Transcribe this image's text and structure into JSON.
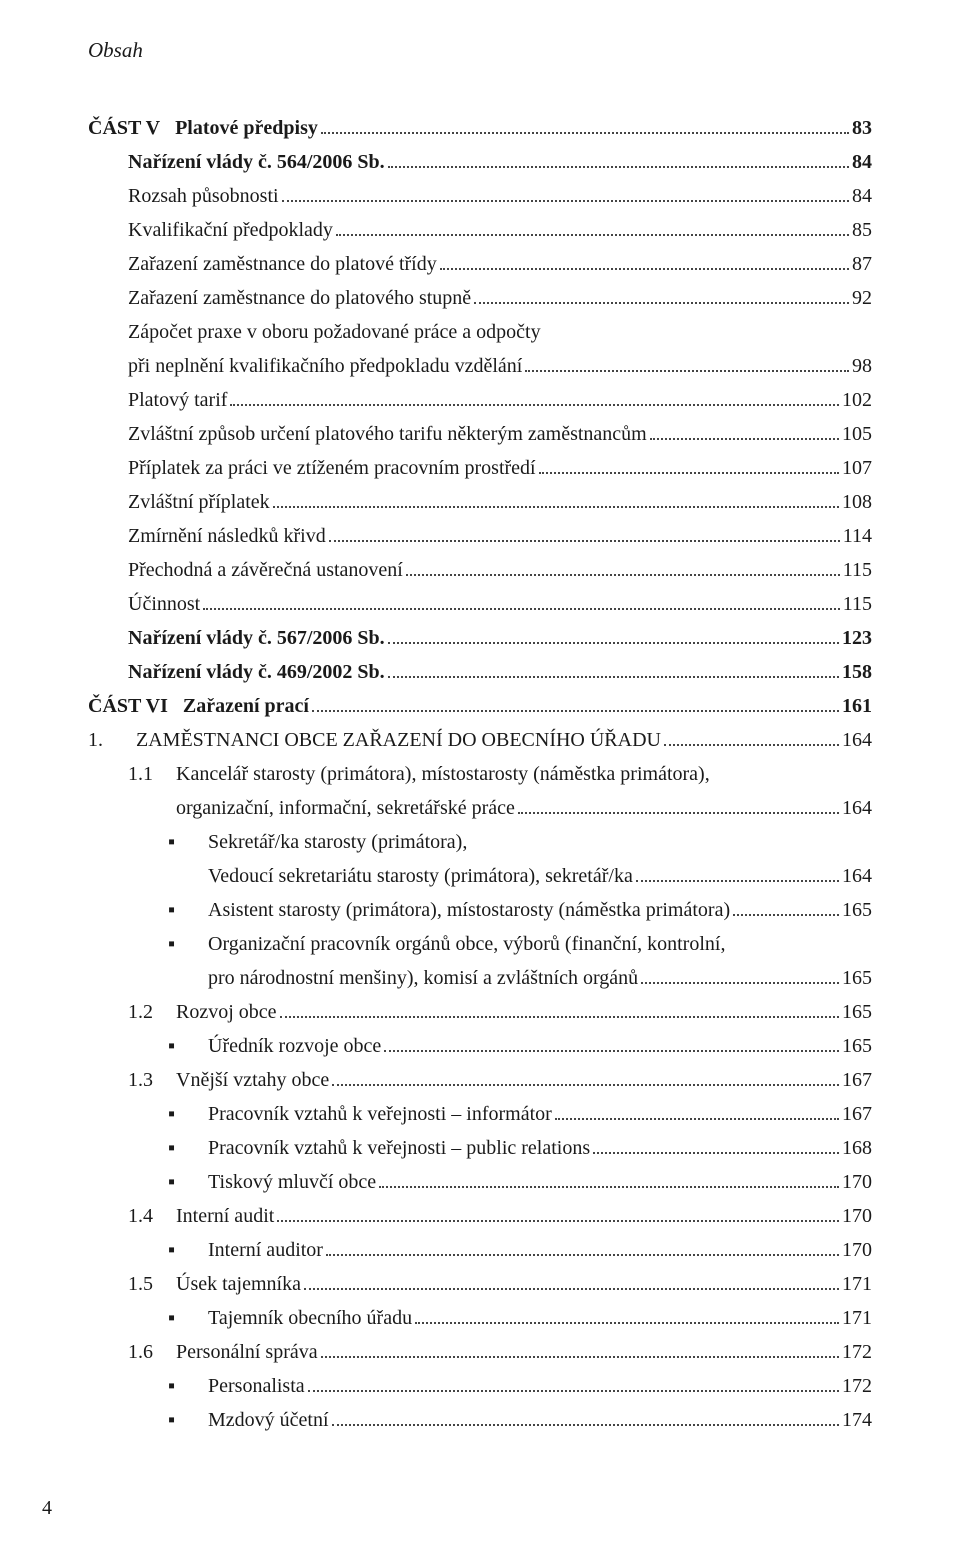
{
  "colors": {
    "text": "#1a1a1a",
    "background": "#ffffff",
    "leader": "#444444"
  },
  "typography": {
    "family": "Georgia, Times New Roman, serif",
    "body_size_pt": 15,
    "running_head_style": "italic"
  },
  "running_head": "Obsah",
  "page_number": "4",
  "toc": {
    "part5": {
      "prefix": "ČÁST V",
      "title": "Platové předpisy",
      "page": "83",
      "items": [
        {
          "label": "Nařízení vlády č. 564/2006 Sb.",
          "page": "84",
          "bold": true
        },
        {
          "label": "Rozsah působnosti",
          "page": "84"
        },
        {
          "label": "Kvalifikační předpoklady",
          "page": "85"
        },
        {
          "label": "Zařazení zaměstnance do platové třídy",
          "page": "87"
        },
        {
          "label": "Zařazení zaměstnance do platového stupně",
          "page": "92"
        },
        {
          "label_lines": [
            "Zápočet praxe v oboru požadované práce a odpočty",
            "při neplnění kvalifikačního předpokladu vzdělání"
          ],
          "page": "98"
        },
        {
          "label": "Platový tarif",
          "page": "102"
        },
        {
          "label": "Zvláštní způsob určení platového tarifu některým zaměstnancům",
          "page": "105"
        },
        {
          "label": "Příplatek za práci ve ztíženém pracovním prostředí",
          "page": "107"
        },
        {
          "label": "Zvláštní příplatek",
          "page": "108"
        },
        {
          "label": "Zmírnění následků křivd",
          "page": "114"
        },
        {
          "label": "Přechodná a závěrečná ustanovení",
          "page": "115"
        },
        {
          "label": "Účinnost",
          "page": "115"
        },
        {
          "label": "Nařízení vlády č. 567/2006 Sb.",
          "page": "123",
          "bold": true
        },
        {
          "label": "Nařízení vlády č. 469/2002 Sb.",
          "page": "158",
          "bold": true
        }
      ]
    },
    "part6": {
      "prefix": "ČÁST VI",
      "title": "Zařazení prací",
      "page": "161",
      "sections": [
        {
          "num": "1.",
          "title": "ZAMĚSTNANCI OBCE ZAŘAZENÍ  DO OBECNÍHO ÚŘADU",
          "page": "164",
          "subs": [
            {
              "num": "1.1",
              "title_lines": [
                "Kancelář starosty (primátora), místostarosty  (náměstka primátora),",
                "organizační, informační, sekretářské práce"
              ],
              "page": "164",
              "bullets": [
                {
                  "lines": [
                    "Sekretář/ka starosty (primátora),",
                    "Vedoucí sekretariátu starosty (primátora), sekretář/ka"
                  ],
                  "page": "164"
                },
                {
                  "lines": [
                    "Asistent starosty (primátora), místostarosty (náměstka primátora)"
                  ],
                  "page": "165"
                },
                {
                  "lines": [
                    "Organizační pracovník orgánů obce, výborů (finanční, kontrolní,",
                    "pro národnostní menšiny), komisí a zvláštních orgánů"
                  ],
                  "page": "165"
                }
              ]
            },
            {
              "num": "1.2",
              "title_lines": [
                "Rozvoj obce"
              ],
              "page": "165",
              "bullets": [
                {
                  "lines": [
                    "Úředník rozvoje obce"
                  ],
                  "page": "165"
                }
              ]
            },
            {
              "num": "1.3",
              "title_lines": [
                "Vnější vztahy obce"
              ],
              "page": "167",
              "bullets": [
                {
                  "lines": [
                    "Pracovník vztahů k veřejnosti – informátor"
                  ],
                  "page": "167"
                },
                {
                  "lines": [
                    "Pracovník vztahů k veřejnosti – public relations"
                  ],
                  "page": "168"
                },
                {
                  "lines": [
                    "Tiskový mluvčí obce"
                  ],
                  "page": "170"
                }
              ]
            },
            {
              "num": "1.4",
              "title_lines": [
                "Interní audit"
              ],
              "page": "170",
              "bullets": [
                {
                  "lines": [
                    "Interní auditor"
                  ],
                  "page": "170"
                }
              ]
            },
            {
              "num": "1.5",
              "title_lines": [
                "Úsek tajemníka"
              ],
              "page": "171",
              "bullets": [
                {
                  "lines": [
                    "Tajemník obecního úřadu"
                  ],
                  "page": "171"
                }
              ]
            },
            {
              "num": "1.6",
              "title_lines": [
                "Personální správa"
              ],
              "page": "172",
              "bullets": [
                {
                  "lines": [
                    "Personalista"
                  ],
                  "page": "172"
                },
                {
                  "lines": [
                    "Mzdový účetní"
                  ],
                  "page": "174"
                }
              ]
            }
          ]
        }
      ]
    }
  }
}
